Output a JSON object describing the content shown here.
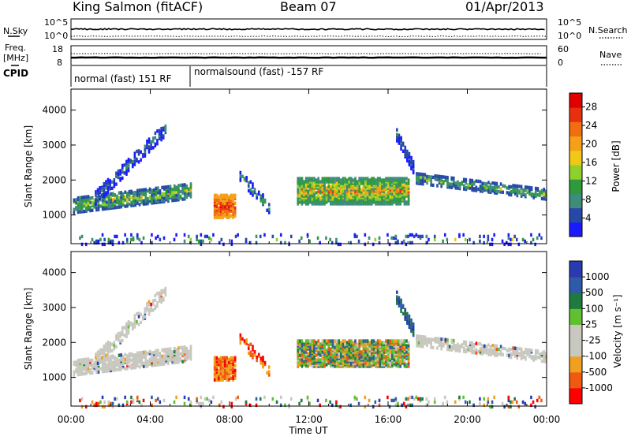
{
  "header": {
    "station": "King Salmon (fitACF)",
    "beam": "Beam 07",
    "date": "01/Apr/2013"
  },
  "strips": {
    "nsky": {
      "label": "N.Sky",
      "ticks": [
        "10^5",
        "10^0"
      ],
      "right_label": "N.Search",
      "right_ticks": [
        "10^5",
        "10^0"
      ]
    },
    "freq": {
      "label_line1": "Freq.",
      "label_line2": "[MHz]",
      "ticks": [
        "18",
        "8"
      ],
      "right_label": "Nave",
      "right_ticks": [
        "60",
        "0"
      ]
    },
    "cpid": {
      "label": "CPID",
      "segments": [
        {
          "label": "normal (fast) 151 RF",
          "start_h": 0,
          "end_h": 6
        },
        {
          "label": "normalsound (fast) -157 RF",
          "start_h": 6,
          "end_h": 24
        }
      ]
    }
  },
  "chart_data": [
    {
      "type": "heatmap",
      "quantity": "Power",
      "ylabel": "Slant Range [km]",
      "xlim": [
        0,
        24
      ],
      "ylim": [
        180,
        4600
      ],
      "yticks": [
        1000,
        2000,
        3000,
        4000
      ],
      "colorbar": {
        "label": "Power [dB]",
        "ticks": [
          "4",
          "8",
          "12",
          "16",
          "20",
          "24",
          "28"
        ],
        "range": [
          0,
          30
        ],
        "colors": [
          "#1a1aff",
          "#2649a8",
          "#3e8c7a",
          "#2f9a3c",
          "#8fd02c",
          "#f0c818",
          "#f5a018",
          "#f06e10",
          "#e83010",
          "#e00000"
        ]
      }
    },
    {
      "type": "heatmap",
      "quantity": "Velocity",
      "ylabel": "Slant Range [km]",
      "xlim": [
        0,
        24
      ],
      "ylim": [
        180,
        4600
      ],
      "yticks": [
        1000,
        2000,
        3000,
        4000
      ],
      "colorbar": {
        "label": "Velocity [m s⁻¹]",
        "ticks": [
          "-1000",
          "-500",
          "-100",
          "-25",
          "25",
          "100",
          "500",
          "1000"
        ],
        "colors": [
          "#ff0000",
          "#f05a10",
          "#f0a020",
          "#c8c8c0",
          "#c8c8c0",
          "#60c030",
          "#1f7a40",
          "#2f5aa8",
          "#2a3ab0"
        ]
      }
    }
  ],
  "xaxis": {
    "label": "Time UT",
    "ticks": [
      "00:00",
      "04:00",
      "08:00",
      "12:00",
      "16:00",
      "20:00",
      "00:00"
    ]
  },
  "colors": {
    "power_low": "#1a1aff",
    "power_high": "#e00000",
    "ground_scatter": "#c8c8c0"
  }
}
